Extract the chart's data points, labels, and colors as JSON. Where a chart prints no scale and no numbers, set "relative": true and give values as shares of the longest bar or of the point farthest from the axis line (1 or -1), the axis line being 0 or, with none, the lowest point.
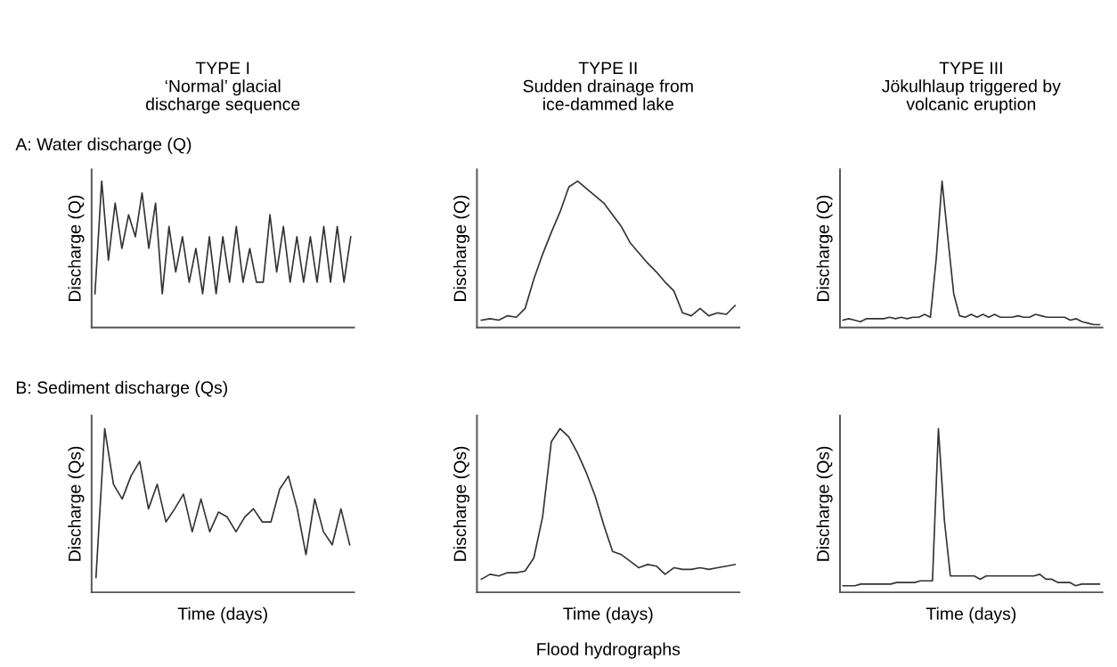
{
  "chart_data": [
    {
      "type": "line",
      "title": "TYPE I\n‘Normal’ glacial\ndischarge sequence",
      "ylabel": "Discharge (Q)",
      "relative": true,
      "annotations": [
        "A: Water discharge (Q)"
      ],
      "tick_labels": false,
      "categories": [
        null,
        null,
        null,
        null,
        null,
        null,
        null,
        null,
        null,
        null,
        null,
        null,
        null,
        null,
        null,
        null,
        null,
        null,
        null,
        null,
        null,
        null,
        null,
        null,
        null,
        null,
        null,
        null,
        null,
        null,
        null,
        null,
        null,
        null,
        null,
        null,
        null,
        null,
        null
      ],
      "series": [
        {
          "color": "#333333",
          "values": [
            0.23,
            1,
            0.46,
            0.85,
            0.54,
            0.77,
            0.62,
            0.92,
            0.54,
            0.85,
            0.23,
            0.69,
            0.38,
            0.62,
            0.31,
            0.54,
            0.23,
            0.62,
            0.23,
            0.62,
            0.31,
            0.69,
            0.31,
            0.54,
            0.31,
            0.31,
            0.77,
            0.38,
            0.69,
            0.31,
            0.62,
            0.31,
            0.62,
            0.31,
            0.69,
            0.31,
            0.69,
            0.31,
            0.62
          ]
        }
      ]
    },
    {
      "type": "line",
      "title": "TYPE II\nSudden drainage from\nice-dammed lake",
      "ylabel": "Discharge (Q)",
      "relative": true,
      "tick_labels": false,
      "categories": [
        null,
        null,
        null,
        null,
        null,
        null,
        null,
        null,
        null,
        null,
        null,
        null,
        null,
        null,
        null,
        null,
        null,
        null,
        null,
        null,
        null,
        null,
        null,
        null,
        null,
        null,
        null,
        null,
        null,
        null
      ],
      "series": [
        {
          "color": "#333333",
          "values": [
            0.05,
            0.06,
            0.05,
            0.08,
            0.07,
            0.13,
            0.33,
            0.5,
            0.65,
            0.79,
            0.96,
            1,
            0.95,
            0.9,
            0.85,
            0.77,
            0.69,
            0.58,
            0.51,
            0.44,
            0.38,
            0.31,
            0.25,
            0.1,
            0.08,
            0.13,
            0.08,
            0.1,
            0.09,
            0.15
          ]
        }
      ]
    },
    {
      "type": "line",
      "title": "TYPE III\nJökulhlaup triggered by\nvolcanic eruption",
      "ylabel": "Discharge (Q)",
      "relative": true,
      "tick_labels": false,
      "categories": [
        null,
        null,
        null,
        null,
        null,
        null,
        null,
        null,
        null,
        null,
        null,
        null,
        null,
        null,
        null,
        null,
        null,
        null,
        null,
        null,
        null,
        null,
        null,
        null,
        null,
        null,
        null,
        null,
        null,
        null,
        null,
        null,
        null,
        null,
        null,
        null,
        null,
        null,
        null,
        null,
        null,
        null,
        null,
        null,
        null
      ],
      "series": [
        {
          "color": "#333333",
          "values": [
            0.05,
            0.06,
            0.05,
            0.04,
            0.06,
            0.06,
            0.06,
            0.06,
            0.07,
            0.06,
            0.07,
            0.06,
            0.07,
            0.07,
            0.09,
            0.07,
            0.47,
            1,
            0.61,
            0.23,
            0.08,
            0.07,
            0.09,
            0.07,
            0.09,
            0.07,
            0.09,
            0.07,
            0.07,
            0.07,
            0.08,
            0.07,
            0.07,
            0.09,
            0.08,
            0.07,
            0.07,
            0.07,
            0.07,
            0.05,
            0.06,
            0.04,
            0.03,
            0.02,
            0.02
          ]
        }
      ]
    },
    {
      "type": "line",
      "xlabel": "Time (days)",
      "ylabel": "Discharge (Qs)",
      "relative": true,
      "annotations": [
        "B: Sediment discharge (Qs)"
      ],
      "tick_labels": false,
      "categories": [
        null,
        null,
        null,
        null,
        null,
        null,
        null,
        null,
        null,
        null,
        null,
        null,
        null,
        null,
        null,
        null,
        null,
        null,
        null,
        null,
        null,
        null,
        null,
        null,
        null,
        null,
        null,
        null,
        null,
        null
      ],
      "series": [
        {
          "color": "#333333",
          "values": [
            0.09,
            1,
            0.66,
            0.57,
            0.71,
            0.8,
            0.51,
            0.66,
            0.43,
            0.51,
            0.6,
            0.37,
            0.57,
            0.37,
            0.49,
            0.46,
            0.37,
            0.46,
            0.51,
            0.43,
            0.43,
            0.63,
            0.71,
            0.51,
            0.23,
            0.57,
            0.37,
            0.29,
            0.51,
            0.29
          ]
        }
      ]
    },
    {
      "type": "line",
      "xlabel": "Time (days)",
      "ylabel": "Discharge (Qs)",
      "relative": true,
      "annotations": [
        "Flood hydrographs"
      ],
      "tick_labels": false,
      "categories": [
        null,
        null,
        null,
        null,
        null,
        null,
        null,
        null,
        null,
        null,
        null,
        null,
        null,
        null,
        null,
        null,
        null,
        null,
        null,
        null,
        null,
        null,
        null,
        null,
        null,
        null,
        null,
        null,
        null,
        null
      ],
      "series": [
        {
          "color": "#333333",
          "values": [
            0.08,
            0.11,
            0.1,
            0.12,
            0.12,
            0.13,
            0.21,
            0.46,
            0.92,
            1,
            0.95,
            0.85,
            0.73,
            0.59,
            0.41,
            0.25,
            0.23,
            0.19,
            0.15,
            0.17,
            0.16,
            0.11,
            0.15,
            0.14,
            0.14,
            0.15,
            0.14,
            0.15,
            0.16,
            0.17
          ]
        }
      ]
    },
    {
      "type": "line",
      "xlabel": "Time (days)",
      "ylabel": "Discharge (Qs)",
      "relative": true,
      "tick_labels": false,
      "categories": [
        null,
        null,
        null,
        null,
        null,
        null,
        null,
        null,
        null,
        null,
        null,
        null,
        null,
        null,
        null,
        null,
        null,
        null,
        null,
        null,
        null,
        null,
        null,
        null,
        null,
        null,
        null,
        null,
        null,
        null,
        null,
        null,
        null,
        null,
        null,
        null,
        null,
        null,
        null,
        null,
        null,
        null,
        null,
        null
      ],
      "series": [
        {
          "color": "#333333",
          "values": [
            0.04,
            0.04,
            0.04,
            0.05,
            0.05,
            0.05,
            0.05,
            0.05,
            0.05,
            0.06,
            0.06,
            0.06,
            0.06,
            0.07,
            0.07,
            0.07,
            1,
            0.44,
            0.1,
            0.1,
            0.1,
            0.1,
            0.1,
            0.08,
            0.1,
            0.1,
            0.1,
            0.1,
            0.1,
            0.1,
            0.1,
            0.1,
            0.1,
            0.11,
            0.08,
            0.08,
            0.06,
            0.06,
            0.06,
            0.04,
            0.05,
            0.05,
            0.05,
            0.05
          ]
        }
      ]
    }
  ]
}
